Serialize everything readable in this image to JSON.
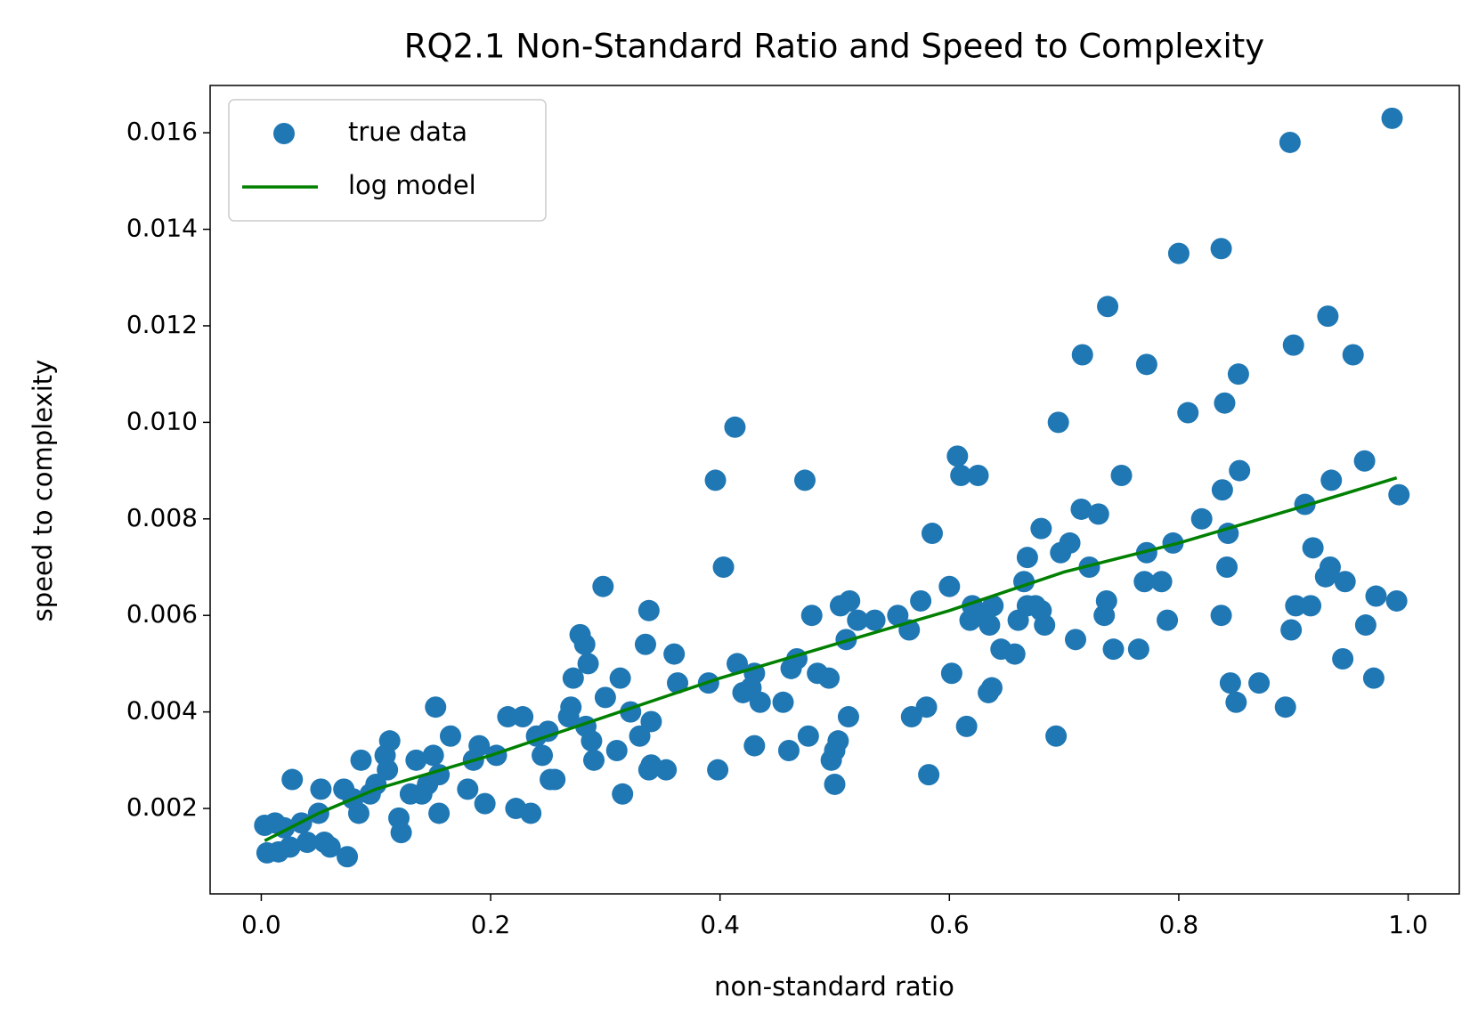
{
  "chart_data": {
    "type": "scatter",
    "title": "RQ2.1 Non-Standard Ratio and Speed to Complexity",
    "x_label": "non-standard ratio",
    "y_label": "speed to complexity",
    "xlim": [
      -0.0446,
      1.0446
    ],
    "ylim": [
      0.00023,
      0.01698
    ],
    "xticks": [
      {
        "value": 0,
        "label": "0.0"
      },
      0.2,
      0.4,
      0.6,
      0.8,
      {
        "value": 1,
        "label": "1.0"
      }
    ],
    "yticks": [
      0.002,
      0.004,
      0.006,
      0.008,
      {
        "value": 0.01,
        "label": "0.010"
      },
      0.012,
      0.014,
      0.016
    ],
    "legend": "upper left",
    "series": [
      {
        "name": "true data",
        "kind": "markers",
        "color": "#1f77b4",
        "x": [
          0.003,
          0.005,
          0.012,
          0.015,
          0.02,
          0.025,
          0.027,
          0.035,
          0.04,
          0.05,
          0.052,
          0.055,
          0.06,
          0.072,
          0.075,
          0.08,
          0.085,
          0.087,
          0.095,
          0.1,
          0.108,
          0.11,
          0.112,
          0.12,
          0.122,
          0.13,
          0.135,
          0.14,
          0.145,
          0.15,
          0.152,
          0.155,
          0.155,
          0.165,
          0.18,
          0.185,
          0.19,
          0.195,
          0.205,
          0.215,
          0.222,
          0.228,
          0.235,
          0.24,
          0.245,
          0.25,
          0.252,
          0.256,
          0.268,
          0.27,
          0.272,
          0.278,
          0.282,
          0.283,
          0.285,
          0.288,
          0.29,
          0.298,
          0.3,
          0.31,
          0.313,
          0.315,
          0.322,
          0.33,
          0.335,
          0.338,
          0.338,
          0.34,
          0.34,
          0.353,
          0.36,
          0.363,
          0.39,
          0.396,
          0.398,
          0.403,
          0.413,
          0.415,
          0.42,
          0.427,
          0.43,
          0.43,
          0.435,
          0.455,
          0.46,
          0.462,
          0.467,
          0.474,
          0.477,
          0.48,
          0.485,
          0.495,
          0.497,
          0.5,
          0.5,
          0.503,
          0.505,
          0.51,
          0.512,
          0.513,
          0.52,
          0.535,
          0.555,
          0.565,
          0.567,
          0.575,
          0.58,
          0.582,
          0.585,
          0.6,
          0.602,
          0.607,
          0.61,
          0.615,
          0.618,
          0.62,
          0.625,
          0.63,
          0.634,
          0.637,
          0.635,
          0.638,
          0.645,
          0.657,
          0.66,
          0.665,
          0.668,
          0.668,
          0.675,
          0.68,
          0.683,
          0.68,
          0.693,
          0.695,
          0.697,
          0.705,
          0.71,
          0.715,
          0.716,
          0.722,
          0.73,
          0.735,
          0.737,
          0.738,
          0.743,
          0.75,
          0.765,
          0.77,
          0.772,
          0.772,
          0.785,
          0.79,
          0.795,
          0.8,
          0.808,
          0.82,
          0.837,
          0.837,
          0.838,
          0.84,
          0.842,
          0.843,
          0.845,
          0.85,
          0.852,
          0.853,
          0.87,
          0.893,
          0.897,
          0.898,
          0.9,
          0.902,
          0.91,
          0.915,
          0.917,
          0.928,
          0.93,
          0.932,
          0.933,
          0.945,
          0.943,
          0.952,
          0.962,
          0.963,
          0.97,
          0.972,
          0.986,
          0.99,
          0.992
        ],
        "values": [
          0.00165,
          0.00108,
          0.0017,
          0.0011,
          0.0016,
          0.0012,
          0.0026,
          0.0017,
          0.0013,
          0.0019,
          0.0024,
          0.0013,
          0.0012,
          0.0024,
          0.001,
          0.0022,
          0.0019,
          0.003,
          0.0023,
          0.0025,
          0.0031,
          0.0028,
          0.0034,
          0.0018,
          0.0015,
          0.0023,
          0.003,
          0.0023,
          0.0025,
          0.0031,
          0.0041,
          0.0019,
          0.0027,
          0.0035,
          0.0024,
          0.003,
          0.0033,
          0.0021,
          0.0031,
          0.0039,
          0.002,
          0.0039,
          0.0019,
          0.0035,
          0.0031,
          0.0036,
          0.0026,
          0.0026,
          0.0039,
          0.0041,
          0.0047,
          0.0056,
          0.0054,
          0.0037,
          0.005,
          0.0034,
          0.003,
          0.0066,
          0.0043,
          0.0032,
          0.0047,
          0.0023,
          0.004,
          0.0035,
          0.0054,
          0.0028,
          0.0061,
          0.0038,
          0.0029,
          0.0028,
          0.0052,
          0.0046,
          0.0046,
          0.0088,
          0.0028,
          0.007,
          0.0099,
          0.005,
          0.0044,
          0.0045,
          0.0048,
          0.0033,
          0.0042,
          0.0042,
          0.0032,
          0.0049,
          0.0051,
          0.0088,
          0.0035,
          0.006,
          0.0048,
          0.0047,
          0.003,
          0.0025,
          0.0032,
          0.0034,
          0.0062,
          0.0055,
          0.0039,
          0.0063,
          0.0059,
          0.0059,
          0.006,
          0.0057,
          0.0039,
          0.0063,
          0.0041,
          0.0027,
          0.0077,
          0.0066,
          0.0048,
          0.0093,
          0.0089,
          0.0037,
          0.0059,
          0.0062,
          0.0089,
          0.006,
          0.0044,
          0.0045,
          0.0058,
          0.0062,
          0.0053,
          0.0052,
          0.0059,
          0.0067,
          0.0062,
          0.0072,
          0.0062,
          0.0078,
          0.0058,
          0.0061,
          0.0035,
          0.01,
          0.0073,
          0.0075,
          0.0055,
          0.0082,
          0.0114,
          0.007,
          0.0081,
          0.006,
          0.0063,
          0.0124,
          0.0053,
          0.0089,
          0.0053,
          0.0067,
          0.0073,
          0.0112,
          0.0067,
          0.0059,
          0.0075,
          0.0135,
          0.0102,
          0.008,
          0.006,
          0.0136,
          0.0086,
          0.0104,
          0.007,
          0.0077,
          0.0046,
          0.0042,
          0.011,
          0.009,
          0.0046,
          0.0041,
          0.0158,
          0.0057,
          0.0116,
          0.0062,
          0.0083,
          0.0062,
          0.0074,
          0.0068,
          0.0122,
          0.007,
          0.0088,
          0.0067,
          0.0051,
          0.0114,
          0.0092,
          0.0058,
          0.0047,
          0.0064,
          0.0163,
          0.0063,
          0.0085
        ]
      },
      {
        "name": "log model",
        "kind": "line",
        "color": "#008000",
        "x": [
          0.003,
          0.05,
          0.1,
          0.2,
          0.3,
          0.4,
          0.5,
          0.6,
          0.7,
          0.8,
          0.9,
          0.99
        ],
        "values": [
          0.00133,
          0.0019,
          0.0024,
          0.0031,
          0.0039,
          0.0047,
          0.0054,
          0.0061,
          0.0069,
          0.0075,
          0.0082,
          0.00885
        ]
      }
    ]
  }
}
